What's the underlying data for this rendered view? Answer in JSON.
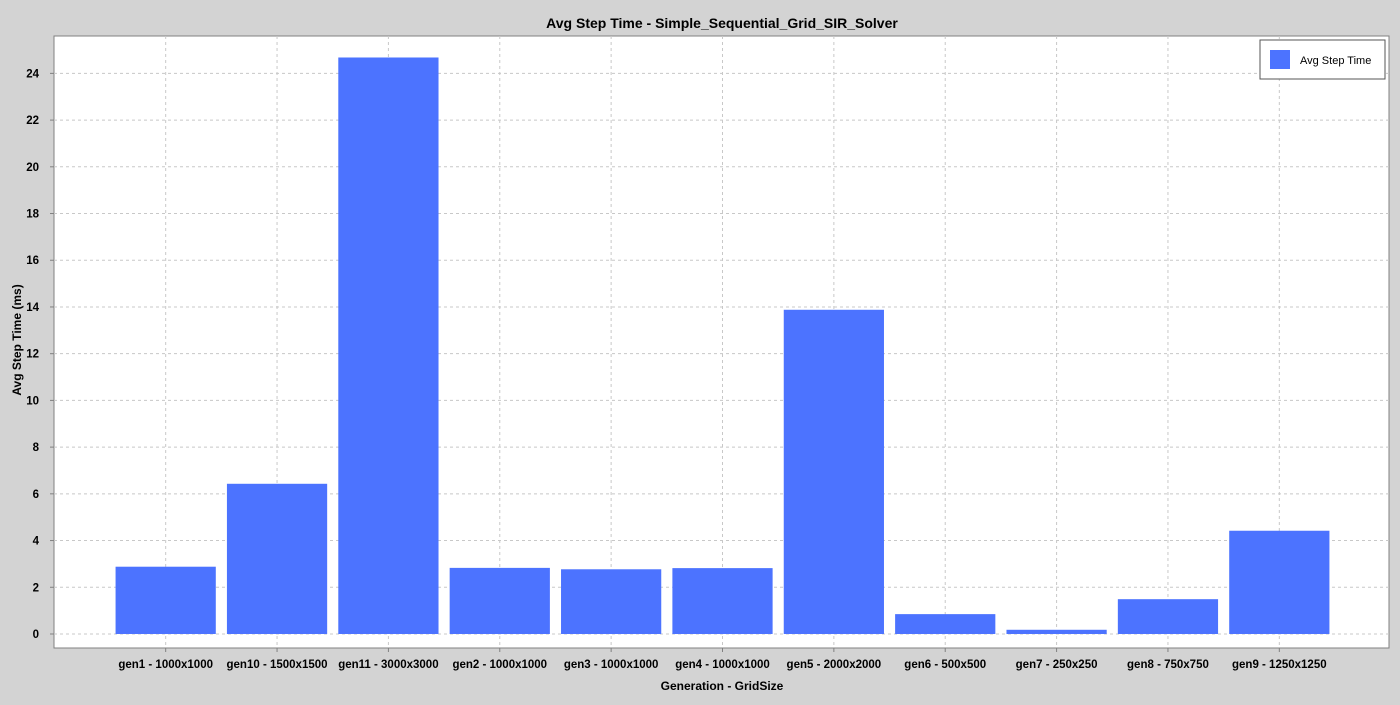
{
  "chart_data": {
    "type": "bar",
    "title": "Avg Step Time - Simple_Sequential_Grid_SIR_Solver",
    "xlabel": "Generation - GridSize",
    "ylabel": "Avg Step Time (ms)",
    "ylim": [
      -0.6,
      25.6
    ],
    "yticks": [
      0,
      2,
      4,
      6,
      8,
      10,
      12,
      14,
      16,
      18,
      20,
      22,
      24
    ],
    "grid": true,
    "legend_position": "top-right",
    "categories": [
      "gen1 - 1000x1000",
      "gen10 - 1500x1500",
      "gen11 - 3000x3000",
      "gen2 - 1000x1000",
      "gen3 - 1000x1000",
      "gen4 - 1000x1000",
      "gen5 - 2000x2000",
      "gen6 - 500x500",
      "gen7 - 250x250",
      "gen8 - 750x750",
      "gen9 - 1250x1250"
    ],
    "series": [
      {
        "name": "Avg Step Time",
        "color": "#4c73ff",
        "values": [
          2.88,
          6.43,
          24.68,
          2.83,
          2.77,
          2.82,
          13.88,
          0.85,
          0.18,
          1.49,
          4.42
        ]
      }
    ]
  },
  "colors": {
    "background": "#d3d3d3",
    "plot_background": "#ffffff",
    "gridline": "#c8c8c8",
    "bar": "#4c73ff"
  }
}
